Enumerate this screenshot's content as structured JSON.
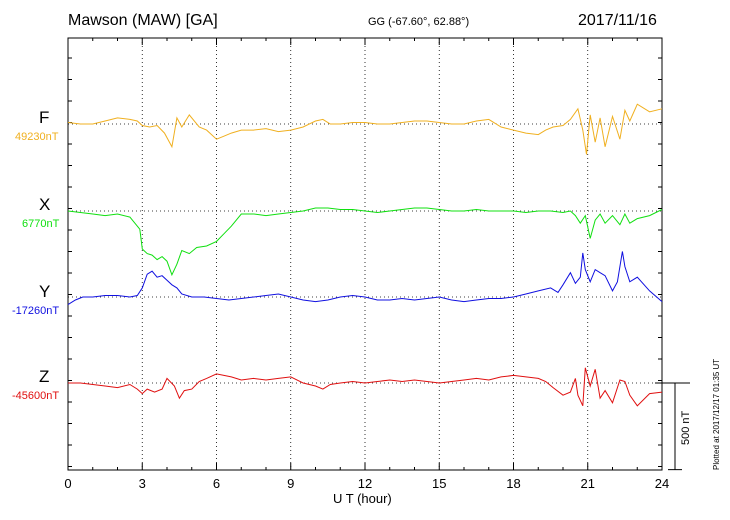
{
  "header": {
    "station": "Mawson (MAW)  [GA]",
    "coords": "GG (-67.60°,  62.88°)",
    "date": "2017/11/16"
  },
  "footer": {
    "plotted": "Plotted at 2017/12/17 01:35 UT",
    "scale": "500 nT"
  },
  "chart_data": {
    "type": "line",
    "title": "Mawson (MAW)  [GA]",
    "xlabel": "U T (hour)",
    "ylabel": "",
    "xlim": [
      0,
      24
    ],
    "xticks": [
      "0",
      "3",
      "6",
      "9",
      "12",
      "15",
      "18",
      "21",
      "24"
    ],
    "scale_nT": 500,
    "grid": true,
    "series": [
      {
        "name": "F",
        "baseline_label": "49230nT",
        "color": "#f0b020",
        "points": [
          [
            0,
            10
          ],
          [
            0.5,
            0
          ],
          [
            1,
            0
          ],
          [
            1.5,
            20
          ],
          [
            2,
            40
          ],
          [
            2.5,
            30
          ],
          [
            2.8,
            20
          ],
          [
            3,
            -10
          ],
          [
            3.3,
            -20
          ],
          [
            3.6,
            -10
          ],
          [
            3.9,
            -60
          ],
          [
            4.2,
            -150
          ],
          [
            4.4,
            40
          ],
          [
            4.6,
            -20
          ],
          [
            4.9,
            60
          ],
          [
            5.3,
            -20
          ],
          [
            5.6,
            -40
          ],
          [
            6,
            -100
          ],
          [
            6.3,
            -80
          ],
          [
            6.6,
            -60
          ],
          [
            7,
            -40
          ],
          [
            7.5,
            -40
          ],
          [
            8,
            -30
          ],
          [
            8.5,
            -50
          ],
          [
            9,
            -40
          ],
          [
            9.5,
            -20
          ],
          [
            10,
            20
          ],
          [
            10.3,
            30
          ],
          [
            10.6,
            0
          ],
          [
            11,
            0
          ],
          [
            11.5,
            10
          ],
          [
            12,
            10
          ],
          [
            12.5,
            0
          ],
          [
            13,
            0
          ],
          [
            13.5,
            10
          ],
          [
            14,
            20
          ],
          [
            14.5,
            20
          ],
          [
            15,
            10
          ],
          [
            15.5,
            0
          ],
          [
            16,
            0
          ],
          [
            16.5,
            20
          ],
          [
            17,
            30
          ],
          [
            17.5,
            -20
          ],
          [
            18,
            -40
          ],
          [
            18.5,
            -60
          ],
          [
            19,
            -70
          ],
          [
            19.3,
            -40
          ],
          [
            19.6,
            -20
          ],
          [
            20,
            -10
          ],
          [
            20.3,
            30
          ],
          [
            20.6,
            100
          ],
          [
            20.8,
            -40
          ],
          [
            20.95,
            -200
          ],
          [
            21.1,
            60
          ],
          [
            21.3,
            -120
          ],
          [
            21.5,
            40
          ],
          [
            21.7,
            -150
          ],
          [
            22,
            50
          ],
          [
            22.3,
            -100
          ],
          [
            22.5,
            90
          ],
          [
            22.7,
            20
          ],
          [
            23,
            130
          ],
          [
            23.5,
            80
          ],
          [
            24,
            100
          ]
        ]
      },
      {
        "name": "X",
        "baseline_label": "6770nT",
        "color": "#10e010",
        "points": [
          [
            0,
            0
          ],
          [
            0.5,
            -10
          ],
          [
            1,
            -20
          ],
          [
            1.5,
            -30
          ],
          [
            2,
            -20
          ],
          [
            2.5,
            -40
          ],
          [
            2.9,
            -120
          ],
          [
            3,
            -250
          ],
          [
            3.2,
            -280
          ],
          [
            3.4,
            -290
          ],
          [
            3.6,
            -320
          ],
          [
            3.8,
            -300
          ],
          [
            4,
            -330
          ],
          [
            4.2,
            -420
          ],
          [
            4.4,
            -350
          ],
          [
            4.6,
            -260
          ],
          [
            4.9,
            -280
          ],
          [
            5.2,
            -240
          ],
          [
            5.6,
            -230
          ],
          [
            6,
            -200
          ],
          [
            6.3,
            -150
          ],
          [
            6.6,
            -100
          ],
          [
            7,
            -20
          ],
          [
            7.5,
            -20
          ],
          [
            8,
            -30
          ],
          [
            8.5,
            -20
          ],
          [
            9,
            -10
          ],
          [
            9.5,
            0
          ],
          [
            10,
            20
          ],
          [
            10.5,
            20
          ],
          [
            11,
            10
          ],
          [
            11.5,
            10
          ],
          [
            12,
            0
          ],
          [
            12.5,
            -10
          ],
          [
            13,
            0
          ],
          [
            13.5,
            10
          ],
          [
            14,
            20
          ],
          [
            14.5,
            20
          ],
          [
            15,
            10
          ],
          [
            15.5,
            0
          ],
          [
            16,
            0
          ],
          [
            16.5,
            10
          ],
          [
            17,
            0
          ],
          [
            17.5,
            0
          ],
          [
            18,
            0
          ],
          [
            18.5,
            -10
          ],
          [
            19,
            0
          ],
          [
            19.5,
            0
          ],
          [
            20,
            -10
          ],
          [
            20.3,
            0
          ],
          [
            20.5,
            -30
          ],
          [
            20.7,
            -80
          ],
          [
            20.9,
            -30
          ],
          [
            21.1,
            -180
          ],
          [
            21.3,
            -60
          ],
          [
            21.5,
            -20
          ],
          [
            21.7,
            -80
          ],
          [
            22,
            -30
          ],
          [
            22.3,
            -90
          ],
          [
            22.5,
            -20
          ],
          [
            22.7,
            -80
          ],
          [
            23,
            -50
          ],
          [
            23.5,
            -30
          ],
          [
            24,
            10
          ]
        ]
      },
      {
        "name": "Y",
        "baseline_label": "-17260nT",
        "color": "#1010e0",
        "points": [
          [
            0,
            -50
          ],
          [
            0.3,
            -20
          ],
          [
            0.6,
            0
          ],
          [
            1,
            0
          ],
          [
            1.5,
            10
          ],
          [
            2,
            10
          ],
          [
            2.5,
            0
          ],
          [
            2.8,
            10
          ],
          [
            3,
            60
          ],
          [
            3.2,
            150
          ],
          [
            3.4,
            170
          ],
          [
            3.6,
            130
          ],
          [
            3.8,
            140
          ],
          [
            4,
            110
          ],
          [
            4.2,
            80
          ],
          [
            4.4,
            60
          ],
          [
            4.6,
            20
          ],
          [
            5,
            0
          ],
          [
            5.5,
            0
          ],
          [
            6,
            -10
          ],
          [
            6.5,
            -20
          ],
          [
            7,
            -10
          ],
          [
            7.5,
            0
          ],
          [
            8,
            10
          ],
          [
            8.5,
            20
          ],
          [
            9,
            0
          ],
          [
            9.5,
            -20
          ],
          [
            10,
            -30
          ],
          [
            10.5,
            -20
          ],
          [
            11,
            0
          ],
          [
            11.5,
            10
          ],
          [
            12,
            0
          ],
          [
            12.5,
            -20
          ],
          [
            13,
            -20
          ],
          [
            13.5,
            -10
          ],
          [
            14,
            -20
          ],
          [
            14.5,
            -10
          ],
          [
            15,
            0
          ],
          [
            15.5,
            -20
          ],
          [
            16,
            -30
          ],
          [
            16.5,
            -20
          ],
          [
            17,
            -10
          ],
          [
            17.5,
            -10
          ],
          [
            18,
            0
          ],
          [
            18.5,
            20
          ],
          [
            19,
            40
          ],
          [
            19.5,
            60
          ],
          [
            19.8,
            30
          ],
          [
            20,
            80
          ],
          [
            20.3,
            160
          ],
          [
            20.5,
            90
          ],
          [
            20.7,
            130
          ],
          [
            20.8,
            290
          ],
          [
            20.9,
            180
          ],
          [
            21.1,
            100
          ],
          [
            21.3,
            180
          ],
          [
            21.5,
            160
          ],
          [
            21.7,
            140
          ],
          [
            22,
            40
          ],
          [
            22.2,
            100
          ],
          [
            22.4,
            300
          ],
          [
            22.5,
            200
          ],
          [
            22.7,
            100
          ],
          [
            23,
            130
          ],
          [
            23.5,
            40
          ],
          [
            24,
            -30
          ]
        ]
      },
      {
        "name": "Z",
        "baseline_label": "-45600nT",
        "color": "#e01010",
        "points": [
          [
            0,
            0
          ],
          [
            0.5,
            0
          ],
          [
            1,
            -10
          ],
          [
            1.5,
            -20
          ],
          [
            2,
            -30
          ],
          [
            2.5,
            -10
          ],
          [
            2.8,
            -40
          ],
          [
            3,
            -70
          ],
          [
            3.2,
            -40
          ],
          [
            3.5,
            -60
          ],
          [
            3.8,
            -40
          ],
          [
            4,
            30
          ],
          [
            4.3,
            -20
          ],
          [
            4.5,
            -100
          ],
          [
            4.7,
            -50
          ],
          [
            5,
            -40
          ],
          [
            5.3,
            10
          ],
          [
            5.6,
            30
          ],
          [
            6,
            60
          ],
          [
            6.3,
            50
          ],
          [
            6.6,
            40
          ],
          [
            7,
            20
          ],
          [
            7.5,
            30
          ],
          [
            8,
            20
          ],
          [
            8.5,
            30
          ],
          [
            9,
            40
          ],
          [
            9.5,
            0
          ],
          [
            10,
            -20
          ],
          [
            10.3,
            -40
          ],
          [
            10.6,
            -10
          ],
          [
            11,
            0
          ],
          [
            11.5,
            10
          ],
          [
            12,
            0
          ],
          [
            12.5,
            10
          ],
          [
            13,
            20
          ],
          [
            13.5,
            10
          ],
          [
            14,
            20
          ],
          [
            14.5,
            10
          ],
          [
            15,
            0
          ],
          [
            15.5,
            10
          ],
          [
            16,
            20
          ],
          [
            16.5,
            30
          ],
          [
            17,
            20
          ],
          [
            17.5,
            40
          ],
          [
            18,
            50
          ],
          [
            18.5,
            40
          ],
          [
            19,
            30
          ],
          [
            19.3,
            10
          ],
          [
            19.6,
            -30
          ],
          [
            20,
            -80
          ],
          [
            20.3,
            -60
          ],
          [
            20.5,
            30
          ],
          [
            20.6,
            -80
          ],
          [
            20.8,
            -150
          ],
          [
            20.9,
            100
          ],
          [
            21.1,
            -20
          ],
          [
            21.3,
            90
          ],
          [
            21.5,
            -100
          ],
          [
            21.7,
            -50
          ],
          [
            22,
            -130
          ],
          [
            22.3,
            20
          ],
          [
            22.5,
            10
          ],
          [
            22.7,
            -80
          ],
          [
            23,
            -150
          ],
          [
            23.5,
            -70
          ],
          [
            24,
            -60
          ]
        ]
      }
    ]
  }
}
